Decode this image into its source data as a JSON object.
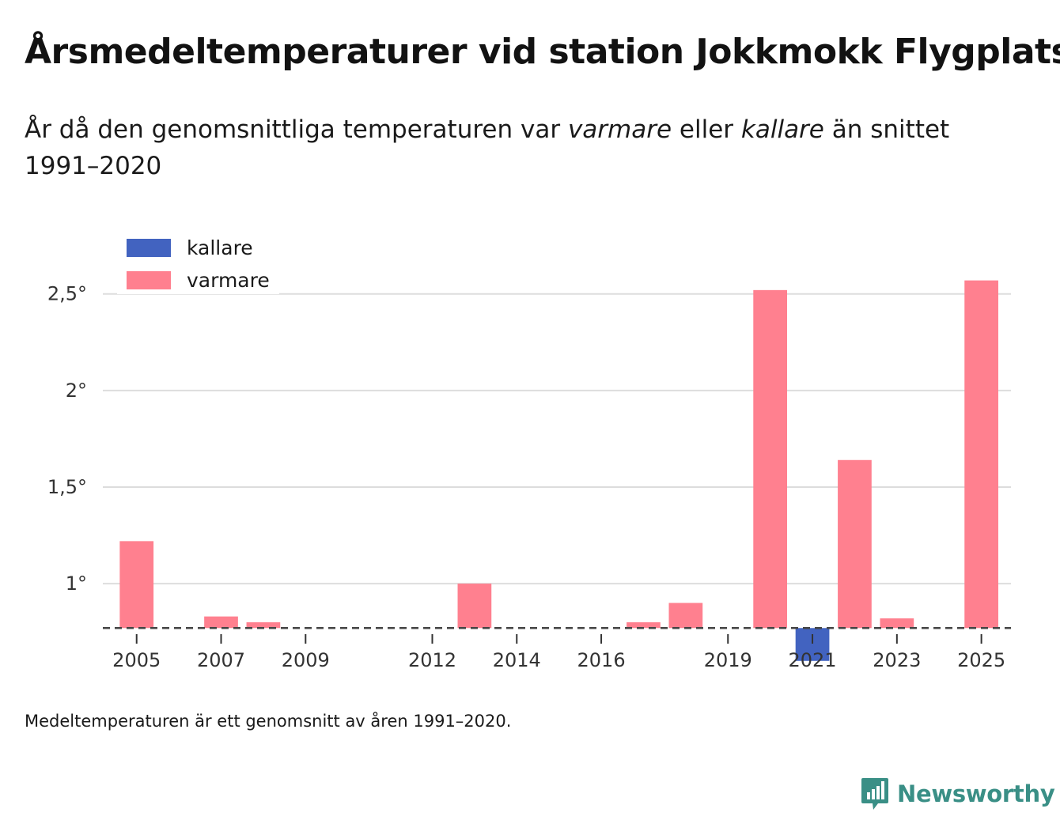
{
  "title": "Årsmedeltemperaturer vid station Jokkmokk Flygplats",
  "subtitle": {
    "prefix": "År då den genomsnittliga temperaturen var",
    "word_warmer": "varmare",
    "middle": "eller",
    "word_colder": "kallare",
    "suffix": "än snittet 1991–2020"
  },
  "footnote": "Medeltemperaturen är ett genomsnitt av åren 1991–2020.",
  "brand": "Newsworthy",
  "colors": {
    "warmer": "#ff808f",
    "colder": "#4263c0",
    "grid": "#dddddd",
    "baseline": "#444444",
    "brand": "#3a8f86"
  },
  "chart_data": {
    "type": "bar",
    "title": "Årsmedeltemperaturer vid station Jokkmokk Flygplats",
    "xlabel": "",
    "ylabel": "",
    "baseline": 0.77,
    "ylim": [
      0.55,
      2.72
    ],
    "yticks": [
      1,
      1.5,
      2,
      2.5
    ],
    "ytick_labels": [
      "1°",
      "1,5°",
      "2°",
      "2,5°"
    ],
    "xlim": [
      2004.2,
      2025.7
    ],
    "xticks": [
      2005,
      2007,
      2009,
      2012,
      2014,
      2016,
      2019,
      2021,
      2023,
      2025
    ],
    "xtick_labels": [
      "2005",
      "2007",
      "2009",
      "2012",
      "2014",
      "2016",
      "2019",
      "2021",
      "2023",
      "2025"
    ],
    "legend": [
      {
        "key": "colder",
        "label": "kallare"
      },
      {
        "key": "warmer",
        "label": "varmare"
      }
    ],
    "legend_position": "top-left",
    "bars": [
      {
        "year": 2005,
        "value": 1.22,
        "category": "warmer"
      },
      {
        "year": 2007,
        "value": 0.83,
        "category": "warmer"
      },
      {
        "year": 2008,
        "value": 0.8,
        "category": "warmer"
      },
      {
        "year": 2013,
        "value": 1.0,
        "category": "warmer"
      },
      {
        "year": 2017,
        "value": 0.8,
        "category": "warmer"
      },
      {
        "year": 2018,
        "value": 0.9,
        "category": "warmer"
      },
      {
        "year": 2020,
        "value": 2.52,
        "category": "warmer"
      },
      {
        "year": 2021,
        "value": 0.6,
        "category": "colder"
      },
      {
        "year": 2022,
        "value": 1.64,
        "category": "warmer"
      },
      {
        "year": 2023,
        "value": 0.82,
        "category": "warmer"
      },
      {
        "year": 2025,
        "value": 2.57,
        "category": "warmer"
      }
    ]
  }
}
